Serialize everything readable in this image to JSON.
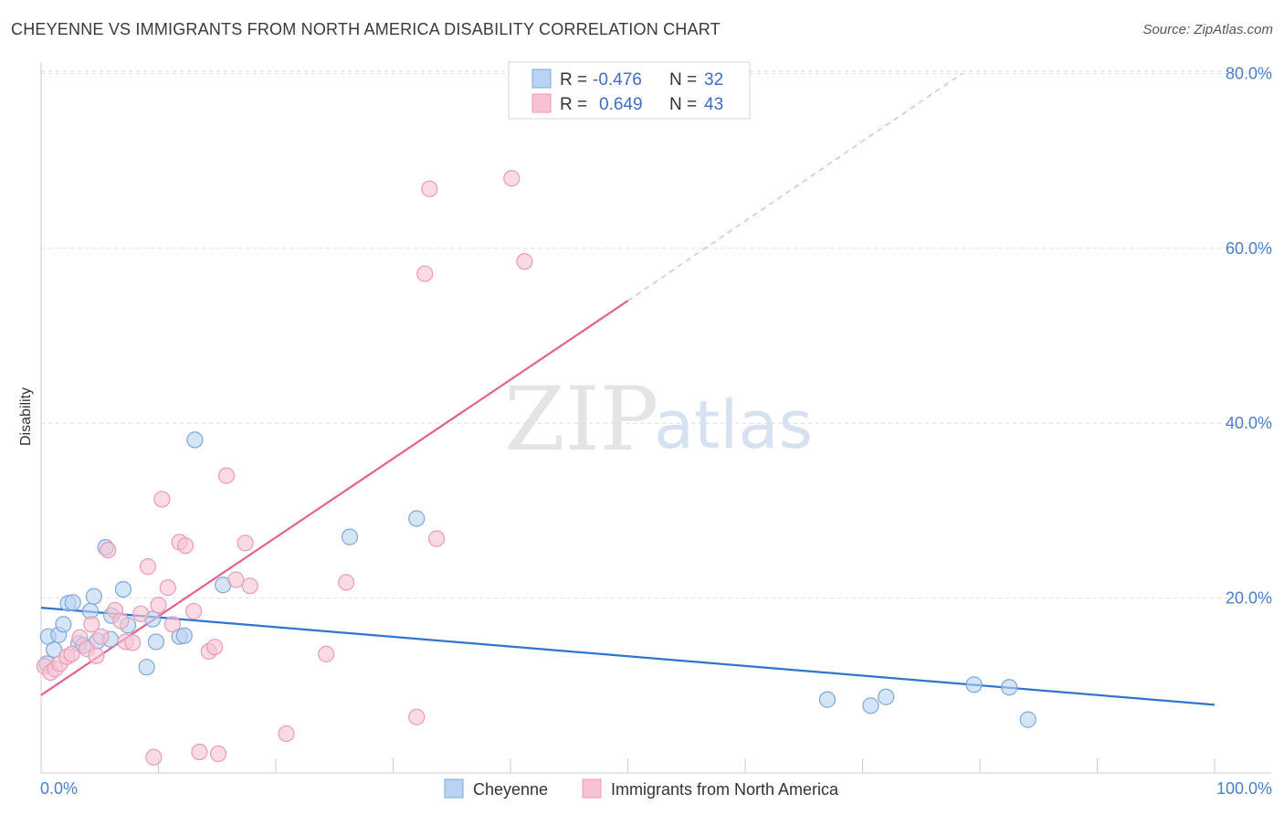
{
  "title": "CHEYENNE VS IMMIGRANTS FROM NORTH AMERICA DISABILITY CORRELATION CHART",
  "source": "Source: ZipAtlas.com",
  "watermark": {
    "zip": "ZIP",
    "atlas": "atlas"
  },
  "colors": {
    "blue_fill": "#b9d3f3",
    "blue_stroke": "#7ea7dc",
    "blue_line": "#2f74d0",
    "pink_fill": "#f7c3d4",
    "pink_stroke": "#ec9ab4",
    "pink_line": "#e2628c",
    "grid": "#dddddd",
    "tick_label": "#4a7fc8"
  },
  "legend": {
    "rows": [
      {
        "r_label": "R =",
        "r_value": "-0.476",
        "n_label": "N =",
        "n_value": "32"
      },
      {
        "r_label": "R =",
        "r_value": "0.649",
        "n_label": "N =",
        "n_value": "43"
      }
    ]
  },
  "chart_data": {
    "type": "scatter",
    "title": "CHEYENNE VS IMMIGRANTS FROM NORTH AMERICA DISABILITY CORRELATION CHART",
    "xlabel": "",
    "ylabel": "Disability",
    "xlim": [
      0,
      100
    ],
    "ylim": [
      0,
      80
    ],
    "x_tick_labels": [
      "0.0%",
      "100.0%"
    ],
    "y_ticks": [
      20,
      40,
      60,
      80
    ],
    "y_tick_labels": [
      "20.0%",
      "40.0%",
      "60.0%",
      "80.0%"
    ],
    "grid": true,
    "legend_position": "top-center",
    "series": [
      {
        "name": "Cheyenne",
        "color": "#b9d3f3",
        "points": [
          [
            0.5,
            12.5
          ],
          [
            0.6,
            15.6
          ],
          [
            1.1,
            14.1
          ],
          [
            1.5,
            15.8
          ],
          [
            1.9,
            17.0
          ],
          [
            2.3,
            19.4
          ],
          [
            2.7,
            19.5
          ],
          [
            3.2,
            14.8
          ],
          [
            3.6,
            14.6
          ],
          [
            4.2,
            18.5
          ],
          [
            4.5,
            20.2
          ],
          [
            4.8,
            15.1
          ],
          [
            5.5,
            25.8
          ],
          [
            5.9,
            15.3
          ],
          [
            6.0,
            18.0
          ],
          [
            7.0,
            21.0
          ],
          [
            7.4,
            16.9
          ],
          [
            9.0,
            12.1
          ],
          [
            9.5,
            17.6
          ],
          [
            9.8,
            15.0
          ],
          [
            11.8,
            15.6
          ],
          [
            12.2,
            15.7
          ],
          [
            13.1,
            38.1
          ],
          [
            15.5,
            21.5
          ],
          [
            26.3,
            27.0
          ],
          [
            32.0,
            29.1
          ],
          [
            67.0,
            8.4
          ],
          [
            70.7,
            7.7
          ],
          [
            72.0,
            8.7
          ],
          [
            79.5,
            10.1
          ],
          [
            82.5,
            9.8
          ],
          [
            84.1,
            6.1
          ]
        ]
      },
      {
        "name": "Immigrants from North America",
        "color": "#f7c3d4",
        "points": [
          [
            0.3,
            12.2
          ],
          [
            0.8,
            11.5
          ],
          [
            1.2,
            11.9
          ],
          [
            1.6,
            12.5
          ],
          [
            2.2,
            13.3
          ],
          [
            2.6,
            13.6
          ],
          [
            3.3,
            15.5
          ],
          [
            3.9,
            14.2
          ],
          [
            4.3,
            17.0
          ],
          [
            4.7,
            13.4
          ],
          [
            5.1,
            15.6
          ],
          [
            5.7,
            25.5
          ],
          [
            6.3,
            18.6
          ],
          [
            6.8,
            17.4
          ],
          [
            7.2,
            15.0
          ],
          [
            7.8,
            14.9
          ],
          [
            8.5,
            18.2
          ],
          [
            9.1,
            23.6
          ],
          [
            9.6,
            1.8
          ],
          [
            10.0,
            19.2
          ],
          [
            10.3,
            31.3
          ],
          [
            10.8,
            21.2
          ],
          [
            11.2,
            17.0
          ],
          [
            11.8,
            26.4
          ],
          [
            12.3,
            26.0
          ],
          [
            13.0,
            18.5
          ],
          [
            13.5,
            2.4
          ],
          [
            14.3,
            13.9
          ],
          [
            14.8,
            14.4
          ],
          [
            15.1,
            2.2
          ],
          [
            15.8,
            34.0
          ],
          [
            16.6,
            22.1
          ],
          [
            17.4,
            26.3
          ],
          [
            17.8,
            21.4
          ],
          [
            20.9,
            4.5
          ],
          [
            24.3,
            13.6
          ],
          [
            26.0,
            21.8
          ],
          [
            32.0,
            6.4
          ],
          [
            32.7,
            57.1
          ],
          [
            33.1,
            66.8
          ],
          [
            33.7,
            26.8
          ],
          [
            40.1,
            68.0
          ],
          [
            41.2,
            58.5
          ]
        ]
      }
    ],
    "trend_lines": [
      {
        "series": "Cheyenne",
        "from": [
          0,
          18.9
        ],
        "to": [
          100,
          7.8
        ]
      },
      {
        "series": "Immigrants from North America",
        "from": [
          0,
          8.9
        ],
        "to": [
          50,
          54.0
        ],
        "dashed_to": [
          78.5,
          80.0
        ]
      }
    ]
  }
}
